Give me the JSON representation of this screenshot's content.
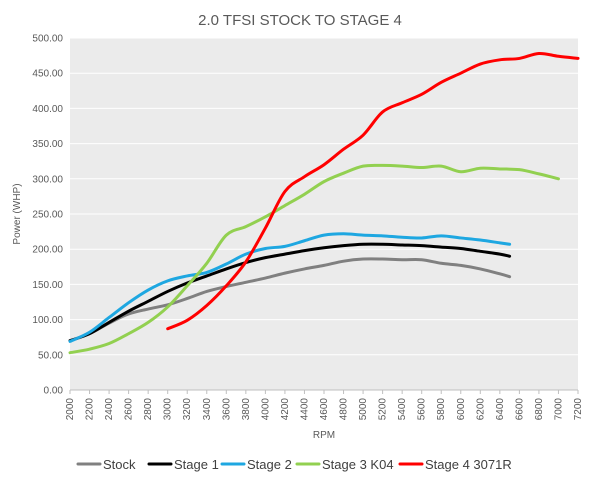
{
  "chart_data": {
    "type": "line",
    "title": "2.0 TFSI STOCK TO STAGE 4",
    "xlabel": "RPM",
    "ylabel": "Power  (WHP)",
    "xlim": [
      2000,
      7200
    ],
    "ylim": [
      0,
      500
    ],
    "x_ticks": [
      "2000",
      "2200",
      "2400",
      "2600",
      "2800",
      "3000",
      "3200",
      "3400",
      "3600",
      "3800",
      "4000",
      "4200",
      "4400",
      "4600",
      "4800",
      "5000",
      "5200",
      "5400",
      "5600",
      "5800",
      "6000",
      "6200",
      "6400",
      "6600",
      "6800",
      "7000",
      "7200"
    ],
    "y_ticks": [
      "0.00",
      "50.00",
      "100.00",
      "150.00",
      "200.00",
      "250.00",
      "300.00",
      "350.00",
      "400.00",
      "450.00",
      "500.00"
    ],
    "grid": true,
    "plot_background": "#ebebeb",
    "legend_position": "bottom",
    "series": [
      {
        "name": "Stock",
        "color": "#808080",
        "x": [
          2000,
          2200,
          2400,
          2600,
          2800,
          3000,
          3200,
          3400,
          3600,
          3800,
          4000,
          4200,
          4400,
          4600,
          4800,
          5000,
          5200,
          5400,
          5600,
          5800,
          6000,
          6200,
          6400,
          6500
        ],
        "y": [
          70,
          80,
          95,
          108,
          115,
          121,
          130,
          140,
          147,
          153,
          159,
          166,
          172,
          177,
          183,
          186,
          186,
          185,
          185,
          180,
          177,
          172,
          165,
          161
        ]
      },
      {
        "name": "Stage 1",
        "color": "#000000",
        "x": [
          2000,
          2200,
          2400,
          2600,
          2800,
          3000,
          3200,
          3400,
          3600,
          3800,
          4000,
          4200,
          4400,
          4600,
          4800,
          5000,
          5200,
          5400,
          5600,
          5800,
          6000,
          6200,
          6400,
          6500
        ],
        "y": [
          70,
          80,
          96,
          112,
          126,
          140,
          152,
          162,
          172,
          181,
          188,
          193,
          198,
          202,
          205,
          207,
          207,
          206,
          205,
          203,
          201,
          197,
          193,
          190
        ]
      },
      {
        "name": "Stage 2",
        "color": "#1ea7e1",
        "x": [
          2000,
          2200,
          2400,
          2600,
          2800,
          3000,
          3200,
          3400,
          3600,
          3800,
          4000,
          4200,
          4400,
          4600,
          4800,
          5000,
          5200,
          5400,
          5600,
          5800,
          6000,
          6200,
          6400,
          6500
        ],
        "y": [
          69,
          82,
          103,
          124,
          142,
          155,
          162,
          167,
          179,
          193,
          201,
          204,
          212,
          220,
          222,
          220,
          219,
          217,
          216,
          219,
          216,
          213,
          209,
          207
        ]
      },
      {
        "name": "Stage 3 K04",
        "color": "#92d050",
        "x": [
          2000,
          2200,
          2400,
          2600,
          2800,
          3000,
          3200,
          3400,
          3600,
          3800,
          4000,
          4200,
          4400,
          4600,
          4800,
          5000,
          5200,
          5400,
          5600,
          5800,
          6000,
          6200,
          6400,
          6600,
          6800,
          7000
        ],
        "y": [
          53,
          58,
          66,
          80,
          96,
          118,
          148,
          180,
          220,
          232,
          246,
          262,
          278,
          296,
          308,
          318,
          319,
          318,
          316,
          318,
          310,
          315,
          314,
          313,
          307,
          300
        ]
      },
      {
        "name": "Stage 4 3071R",
        "color": "#ff0000",
        "x": [
          3000,
          3200,
          3400,
          3600,
          3800,
          4000,
          4200,
          4400,
          4600,
          4800,
          5000,
          5200,
          5400,
          5600,
          5800,
          6000,
          6200,
          6400,
          6600,
          6800,
          7000,
          7200
        ],
        "y": [
          87,
          99,
          120,
          148,
          182,
          230,
          282,
          303,
          320,
          342,
          362,
          395,
          408,
          420,
          437,
          450,
          463,
          469,
          471,
          478,
          474,
          471
        ]
      }
    ]
  }
}
